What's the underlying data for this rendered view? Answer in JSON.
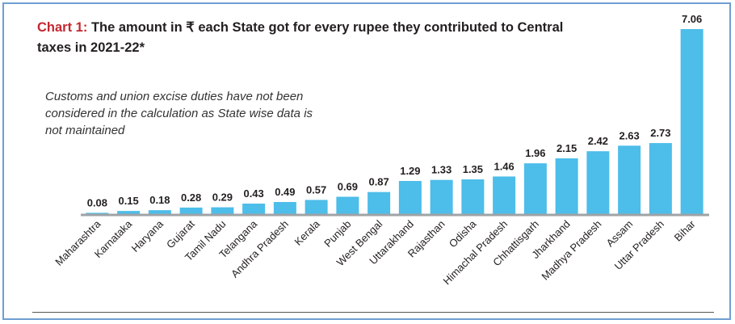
{
  "header": {
    "label": "Chart 1:",
    "title": "The amount in ₹ each State got for every rupee they contributed to Central taxes in 2021-22*"
  },
  "note": "Customs and union excise duties have not been considered in the calculation as State wise data is not maintained",
  "colors": {
    "bar": "#4dbde9",
    "label": "#c4272f",
    "axis": "#9ea3a6"
  },
  "chart_data": {
    "type": "bar",
    "title": "The amount in ₹ each State got for every rupee they contributed to Central taxes in 2021-22*",
    "categories": [
      "Maharashtra",
      "Karnataka",
      "Haryana",
      "Gujarat",
      "Tamil Nadu",
      "Telangana",
      "Andhra Pradesh",
      "Kerala",
      "Punjab",
      "West Bengal",
      "Uttarakhand",
      "Rajasthan",
      "Odisha",
      "Himachal Pradesh",
      "Chhattisgarh",
      "Jharkhand",
      "Madhya Pradesh",
      "Assam",
      "Uttar Pradesh",
      "Bihar"
    ],
    "values": [
      0.08,
      0.15,
      0.18,
      0.28,
      0.29,
      0.43,
      0.49,
      0.57,
      0.69,
      0.87,
      1.29,
      1.33,
      1.35,
      1.46,
      1.96,
      2.15,
      2.42,
      2.63,
      2.73,
      7.06
    ],
    "value_labels": [
      "0.08",
      "0.15",
      "0.18",
      "0.28",
      "0.29",
      "0.43",
      "0.49",
      "0.57",
      "0.69",
      "0.87",
      "1.29",
      "1.33",
      "1.35",
      "1.46",
      "1.96",
      "2.15",
      "2.42",
      "2.63",
      "2.73",
      "7.06"
    ],
    "xlabel": "",
    "ylabel": "",
    "ylim": [
      0,
      7.06
    ],
    "grid": false
  }
}
